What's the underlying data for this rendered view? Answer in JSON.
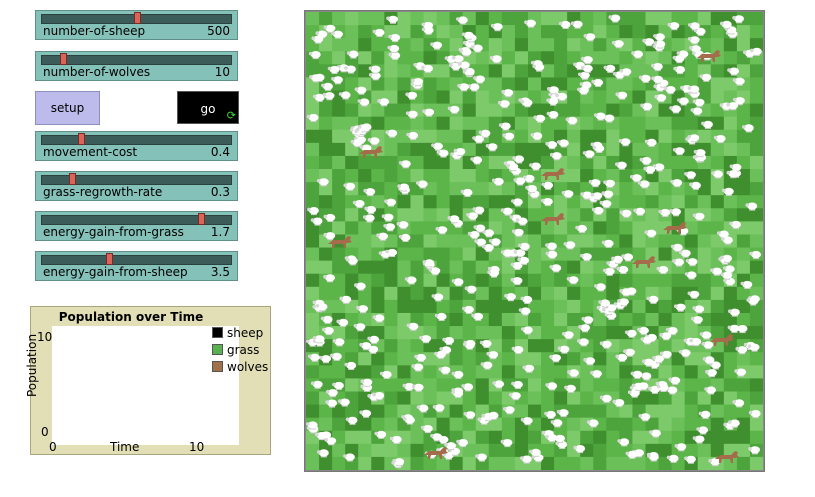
{
  "sliders": [
    {
      "name": "number-of-sheep",
      "value": "500",
      "fraction": 0.5
    },
    {
      "name": "number-of-wolves",
      "value": "10",
      "fraction": 0.1
    },
    {
      "name": "movement-cost",
      "value": "0.4",
      "fraction": 0.2
    },
    {
      "name": "grass-regrowth-rate",
      "value": "0.3",
      "fraction": 0.15
    },
    {
      "name": "energy-gain-from-grass",
      "value": "1.7",
      "fraction": 0.85
    },
    {
      "name": "energy-gain-from-sheep",
      "value": "3.5",
      "fraction": 0.35
    }
  ],
  "buttons": {
    "setup": "setup",
    "go": "go",
    "go_forever_icon": "forever-arrows-icon"
  },
  "plot": {
    "title": "Population over Time",
    "ylabel": "Population",
    "xlabel": "Time",
    "y_max": "10",
    "y_min": "0",
    "x_min": "0",
    "x_max": "10",
    "legend": [
      {
        "label": "sheep",
        "color": "#000000"
      },
      {
        "label": "grass",
        "color": "#59b04e"
      },
      {
        "label": "wolves",
        "color": "#a0714b"
      }
    ]
  },
  "world": {
    "grass_colors": [
      "#3f8f2f",
      "#4ea43c",
      "#5cb548",
      "#6cc05a",
      "#7dca6a"
    ],
    "sheep_color": "#ffffff",
    "wolf_color": "#a46c4a",
    "sheep_count": 500,
    "wolf_count": 10
  }
}
